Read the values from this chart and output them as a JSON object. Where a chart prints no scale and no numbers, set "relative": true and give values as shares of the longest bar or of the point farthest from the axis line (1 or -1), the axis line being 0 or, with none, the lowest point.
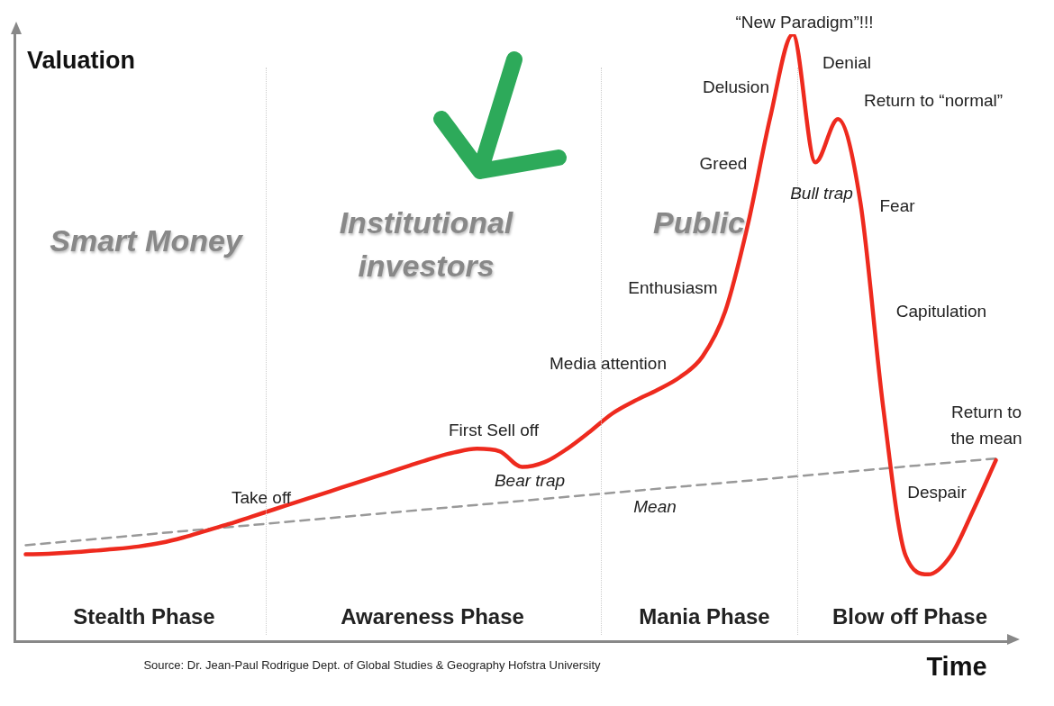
{
  "chart_data": {
    "type": "line",
    "relative": true,
    "xlabel": "Time",
    "ylabel": "Valuation",
    "legend": false,
    "grid": false,
    "categories": [
      null,
      null,
      null,
      null,
      null,
      null,
      null,
      null,
      null,
      null,
      null,
      null,
      null,
      null,
      null,
      null,
      null,
      null,
      null,
      null,
      null,
      null,
      null,
      null,
      null,
      null,
      null,
      null,
      null,
      null,
      null,
      null,
      null,
      null,
      null,
      null,
      null,
      null,
      null,
      null,
      null,
      null,
      null,
      null
    ],
    "series": [
      {
        "color": "#ee2a1e",
        "values": [
          0.143,
          0.144,
          0.146,
          0.149,
          0.152,
          0.156,
          0.162,
          0.171,
          0.182,
          0.193,
          0.205,
          0.217,
          0.229,
          0.241,
          0.253,
          0.265,
          0.277,
          0.289,
          0.301,
          0.311,
          0.317,
          0.313,
          0.287,
          0.295,
          0.317,
          0.345,
          0.375,
          0.396,
          0.414,
          0.435,
          0.469,
          0.543,
          0.685,
          0.863,
          1,
          0.789,
          0.86,
          0.722,
          0.387,
          0.141,
          0.11,
          0.141,
          0.216,
          0.298
        ]
      },
      {
        "name": "Mean",
        "color": "#999999",
        "line_style": "dashed",
        "values": [
          0.158,
          null,
          null,
          null,
          null,
          null,
          null,
          null,
          null,
          null,
          null,
          null,
          null,
          null,
          null,
          null,
          null,
          null,
          null,
          null,
          null,
          null,
          null,
          null,
          null,
          null,
          null,
          null,
          null,
          null,
          null,
          null,
          null,
          null,
          null,
          null,
          null,
          null,
          null,
          null,
          null,
          null,
          null,
          0.301
        ]
      }
    ],
    "annotations": [
      "Smart Money",
      "Institutional investors",
      "Public",
      "Stealth Phase",
      "Awareness Phase",
      "Mania Phase",
      "Blow off Phase",
      "Take off",
      "First Sell off",
      "Bear trap",
      "Media attention",
      "Enthusiasm",
      "Greed",
      "Delusion",
      "“New Paradigm”!!!",
      "Denial",
      "Return to “normal”",
      "Bull trap",
      "Fear",
      "Capitulation",
      "Despair",
      "Return to the mean",
      "Source: Dr. Jean-Paul Rodrigue Dept. of Global Studies & Geography Hofstra University"
    ]
  }
}
